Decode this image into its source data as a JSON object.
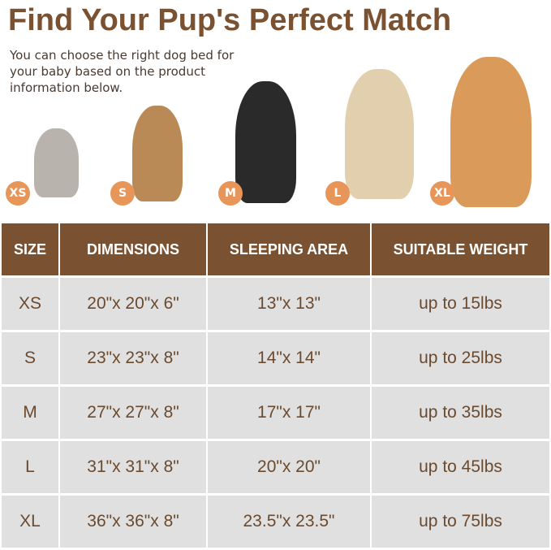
{
  "title": "Find Your Pup's Perfect Match",
  "subtitle": "You can choose the right dog bed for your baby based on the product information below.",
  "badge_color": "#e8955a",
  "brand_color": "#7a5231",
  "pets": [
    {
      "badge": "XS",
      "animal": "cat"
    },
    {
      "badge": "S",
      "animal": "french-bulldog"
    },
    {
      "badge": "M",
      "animal": "border-collie"
    },
    {
      "badge": "L",
      "animal": "golden-retriever-light"
    },
    {
      "badge": "XL",
      "animal": "golden-retriever"
    }
  ],
  "table": {
    "headers": [
      "SIZE",
      "DIMENSIONS",
      "SLEEPING AREA",
      "SUITABLE WEIGHT"
    ],
    "rows": [
      [
        "XS",
        "20\"x 20\"x 6\"",
        "13\"x 13\"",
        "up to 15lbs"
      ],
      [
        "S",
        "23\"x 23\"x 8\"",
        "14\"x 14\"",
        "up to 25lbs"
      ],
      [
        "M",
        "27\"x 27\"x 8\"",
        "17\"x 17\"",
        "up to 35lbs"
      ],
      [
        "L",
        "31\"x 31\"x 8\"",
        "20\"x 20\"",
        "up to 45lbs"
      ],
      [
        "XL",
        "36\"x 36\"x 8\"",
        "23.5\"x 23.5\"",
        "up to 75lbs"
      ]
    ]
  }
}
